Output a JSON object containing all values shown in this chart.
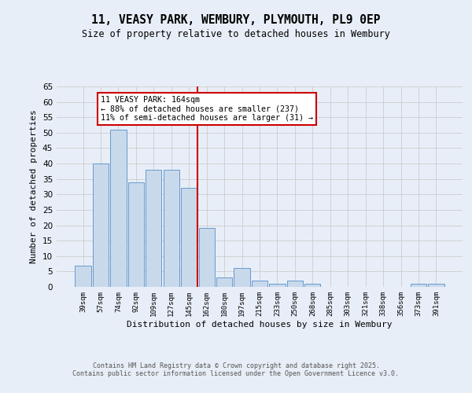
{
  "title": "11, VEASY PARK, WEMBURY, PLYMOUTH, PL9 0EP",
  "subtitle": "Size of property relative to detached houses in Wembury",
  "xlabel": "Distribution of detached houses by size in Wembury",
  "ylabel": "Number of detached properties",
  "categories": [
    "39sqm",
    "57sqm",
    "74sqm",
    "92sqm",
    "109sqm",
    "127sqm",
    "145sqm",
    "162sqm",
    "180sqm",
    "197sqm",
    "215sqm",
    "233sqm",
    "250sqm",
    "268sqm",
    "285sqm",
    "303sqm",
    "321sqm",
    "338sqm",
    "356sqm",
    "373sqm",
    "391sqm"
  ],
  "values": [
    7,
    40,
    51,
    34,
    38,
    38,
    32,
    19,
    3,
    6,
    2,
    1,
    2,
    1,
    0,
    0,
    0,
    0,
    0,
    1,
    1
  ],
  "bar_color": "#c9d9ec",
  "bar_edge_color": "#6699cc",
  "annotation_line1": "11 VEASY PARK: 164sqm",
  "annotation_line2": "← 88% of detached houses are smaller (237)",
  "annotation_line3": "11% of semi-detached houses are larger (31) →",
  "annotation_box_color": "#ffffff",
  "annotation_box_edge_color": "#cc0000",
  "vline_color": "#cc0000",
  "grid_color": "#cccccc",
  "background_color": "#e8eef7",
  "ylim": [
    0,
    65
  ],
  "footer1": "Contains HM Land Registry data © Crown copyright and database right 2025.",
  "footer2": "Contains public sector information licensed under the Open Government Licence v3.0."
}
